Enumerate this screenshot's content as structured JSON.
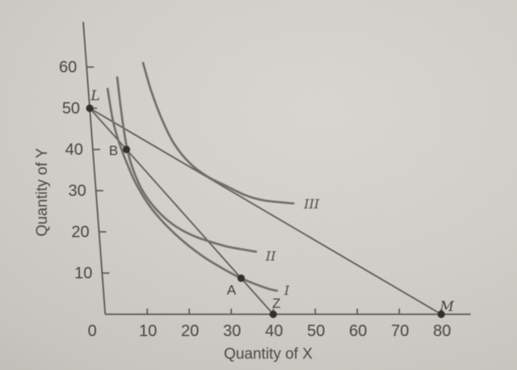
{
  "figure": {
    "description": "Photographed textbook indifference-curve diagram with two budget lines",
    "colors": {
      "paper_light": "#dad7d2",
      "paper_dark": "#a9a6a0",
      "axis_ink": "#55514b",
      "budget_line_ink": "#5b564f",
      "curve_ink": "#6e6963",
      "dot_ink": "#2b2825",
      "text_ink": "#45413b"
    }
  },
  "chart_data": {
    "type": "line",
    "title": "",
    "xlabel": "Quantity of X",
    "ylabel": "Quantity of Y",
    "xlim": [
      0,
      87
    ],
    "ylim": [
      0,
      71
    ],
    "grid": false,
    "x_ticks": [
      0,
      10,
      20,
      30,
      40,
      50,
      60,
      70,
      80
    ],
    "y_ticks": [
      10,
      20,
      30,
      40,
      50,
      60
    ],
    "budget_lines": [
      {
        "name": "LM",
        "points": [
          [
            0,
            50
          ],
          [
            80,
            0
          ]
        ]
      },
      {
        "name": "LZ",
        "points": [
          [
            0,
            50
          ],
          [
            40,
            0
          ]
        ]
      }
    ],
    "indifference_curves": [
      {
        "name": "curve-I",
        "label": "I",
        "points": [
          [
            4.6,
            54.7
          ],
          [
            5.3,
            47
          ],
          [
            6.3,
            42
          ],
          [
            7.6,
            37.5
          ],
          [
            9.6,
            31.8
          ],
          [
            12.5,
            26.3
          ],
          [
            16,
            21.7
          ],
          [
            20,
            17.6
          ],
          [
            24.5,
            13.9
          ],
          [
            28.8,
            11.1
          ],
          [
            33,
            8.75
          ],
          [
            36.8,
            7.1
          ],
          [
            39.3,
            6.2
          ],
          [
            41.3,
            5.7
          ]
        ],
        "label_offset": [
          9,
          5
        ]
      },
      {
        "name": "curve-II",
        "label": "II",
        "points": [
          [
            7.1,
            57.5
          ],
          [
            7.4,
            50
          ],
          [
            7.8,
            44
          ],
          [
            8.25,
            39.7
          ],
          [
            9.3,
            34.8
          ],
          [
            11,
            30.2
          ],
          [
            13.3,
            26.4
          ],
          [
            16,
            23.3
          ],
          [
            19,
            20.9
          ],
          [
            22.5,
            19
          ],
          [
            26,
            17.7
          ],
          [
            30,
            16.5
          ],
          [
            33.5,
            15.8
          ],
          [
            37,
            15.2
          ]
        ],
        "label_offset": [
          12,
          11
        ]
      },
      {
        "name": "curve-III",
        "label": "III",
        "points": [
          [
            13.5,
            61
          ],
          [
            15,
            54
          ],
          [
            17,
            47.3
          ],
          [
            19.5,
            41.3
          ],
          [
            23,
            36.5
          ],
          [
            27,
            33.3
          ],
          [
            31,
            31.2
          ],
          [
            35.5,
            28.9
          ],
          [
            40,
            27.6
          ],
          [
            46.8,
            26.9
          ]
        ],
        "label_offset": [
          13,
          6
        ]
      }
    ],
    "points": [
      {
        "label": "L",
        "x": 0,
        "y": 50,
        "style": "serif",
        "label_offset": [
          7,
          -10
        ]
      },
      {
        "label": "B",
        "x": 8,
        "y": 40,
        "style": "sans",
        "label_offset": [
          -16,
          7
        ]
      },
      {
        "label": "A",
        "x": 33,
        "y": 8.75,
        "style": "sans",
        "label_offset": [
          -12,
          20
        ]
      },
      {
        "label": "Z",
        "x": 40,
        "y": 0,
        "style": "sans",
        "label_offset": [
          4,
          -8
        ]
      },
      {
        "label": "M",
        "x": 80,
        "y": 0,
        "style": "serif",
        "label_offset": [
          7,
          -4
        ]
      }
    ]
  }
}
